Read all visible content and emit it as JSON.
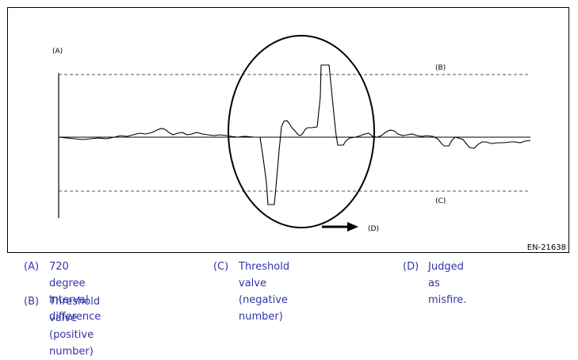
{
  "figure": {
    "code": "EN-21638",
    "callouts": {
      "a": "(A)",
      "b": "(B)",
      "c": "(C)",
      "d": "(D)"
    }
  },
  "legend": [
    {
      "key": "(A)",
      "text_line1": "720 degree interval",
      "text_line2": "difference"
    },
    {
      "key": "(B)",
      "text_line1": "Threshold valve (positive",
      "text_line2": "number)"
    },
    {
      "key": "(C)",
      "text_line1": "Threshold valve (negative",
      "text_line2": "number)"
    },
    {
      "key": "(D)",
      "text_line1": "Judged as misfire.",
      "text_line2": ""
    }
  ]
}
